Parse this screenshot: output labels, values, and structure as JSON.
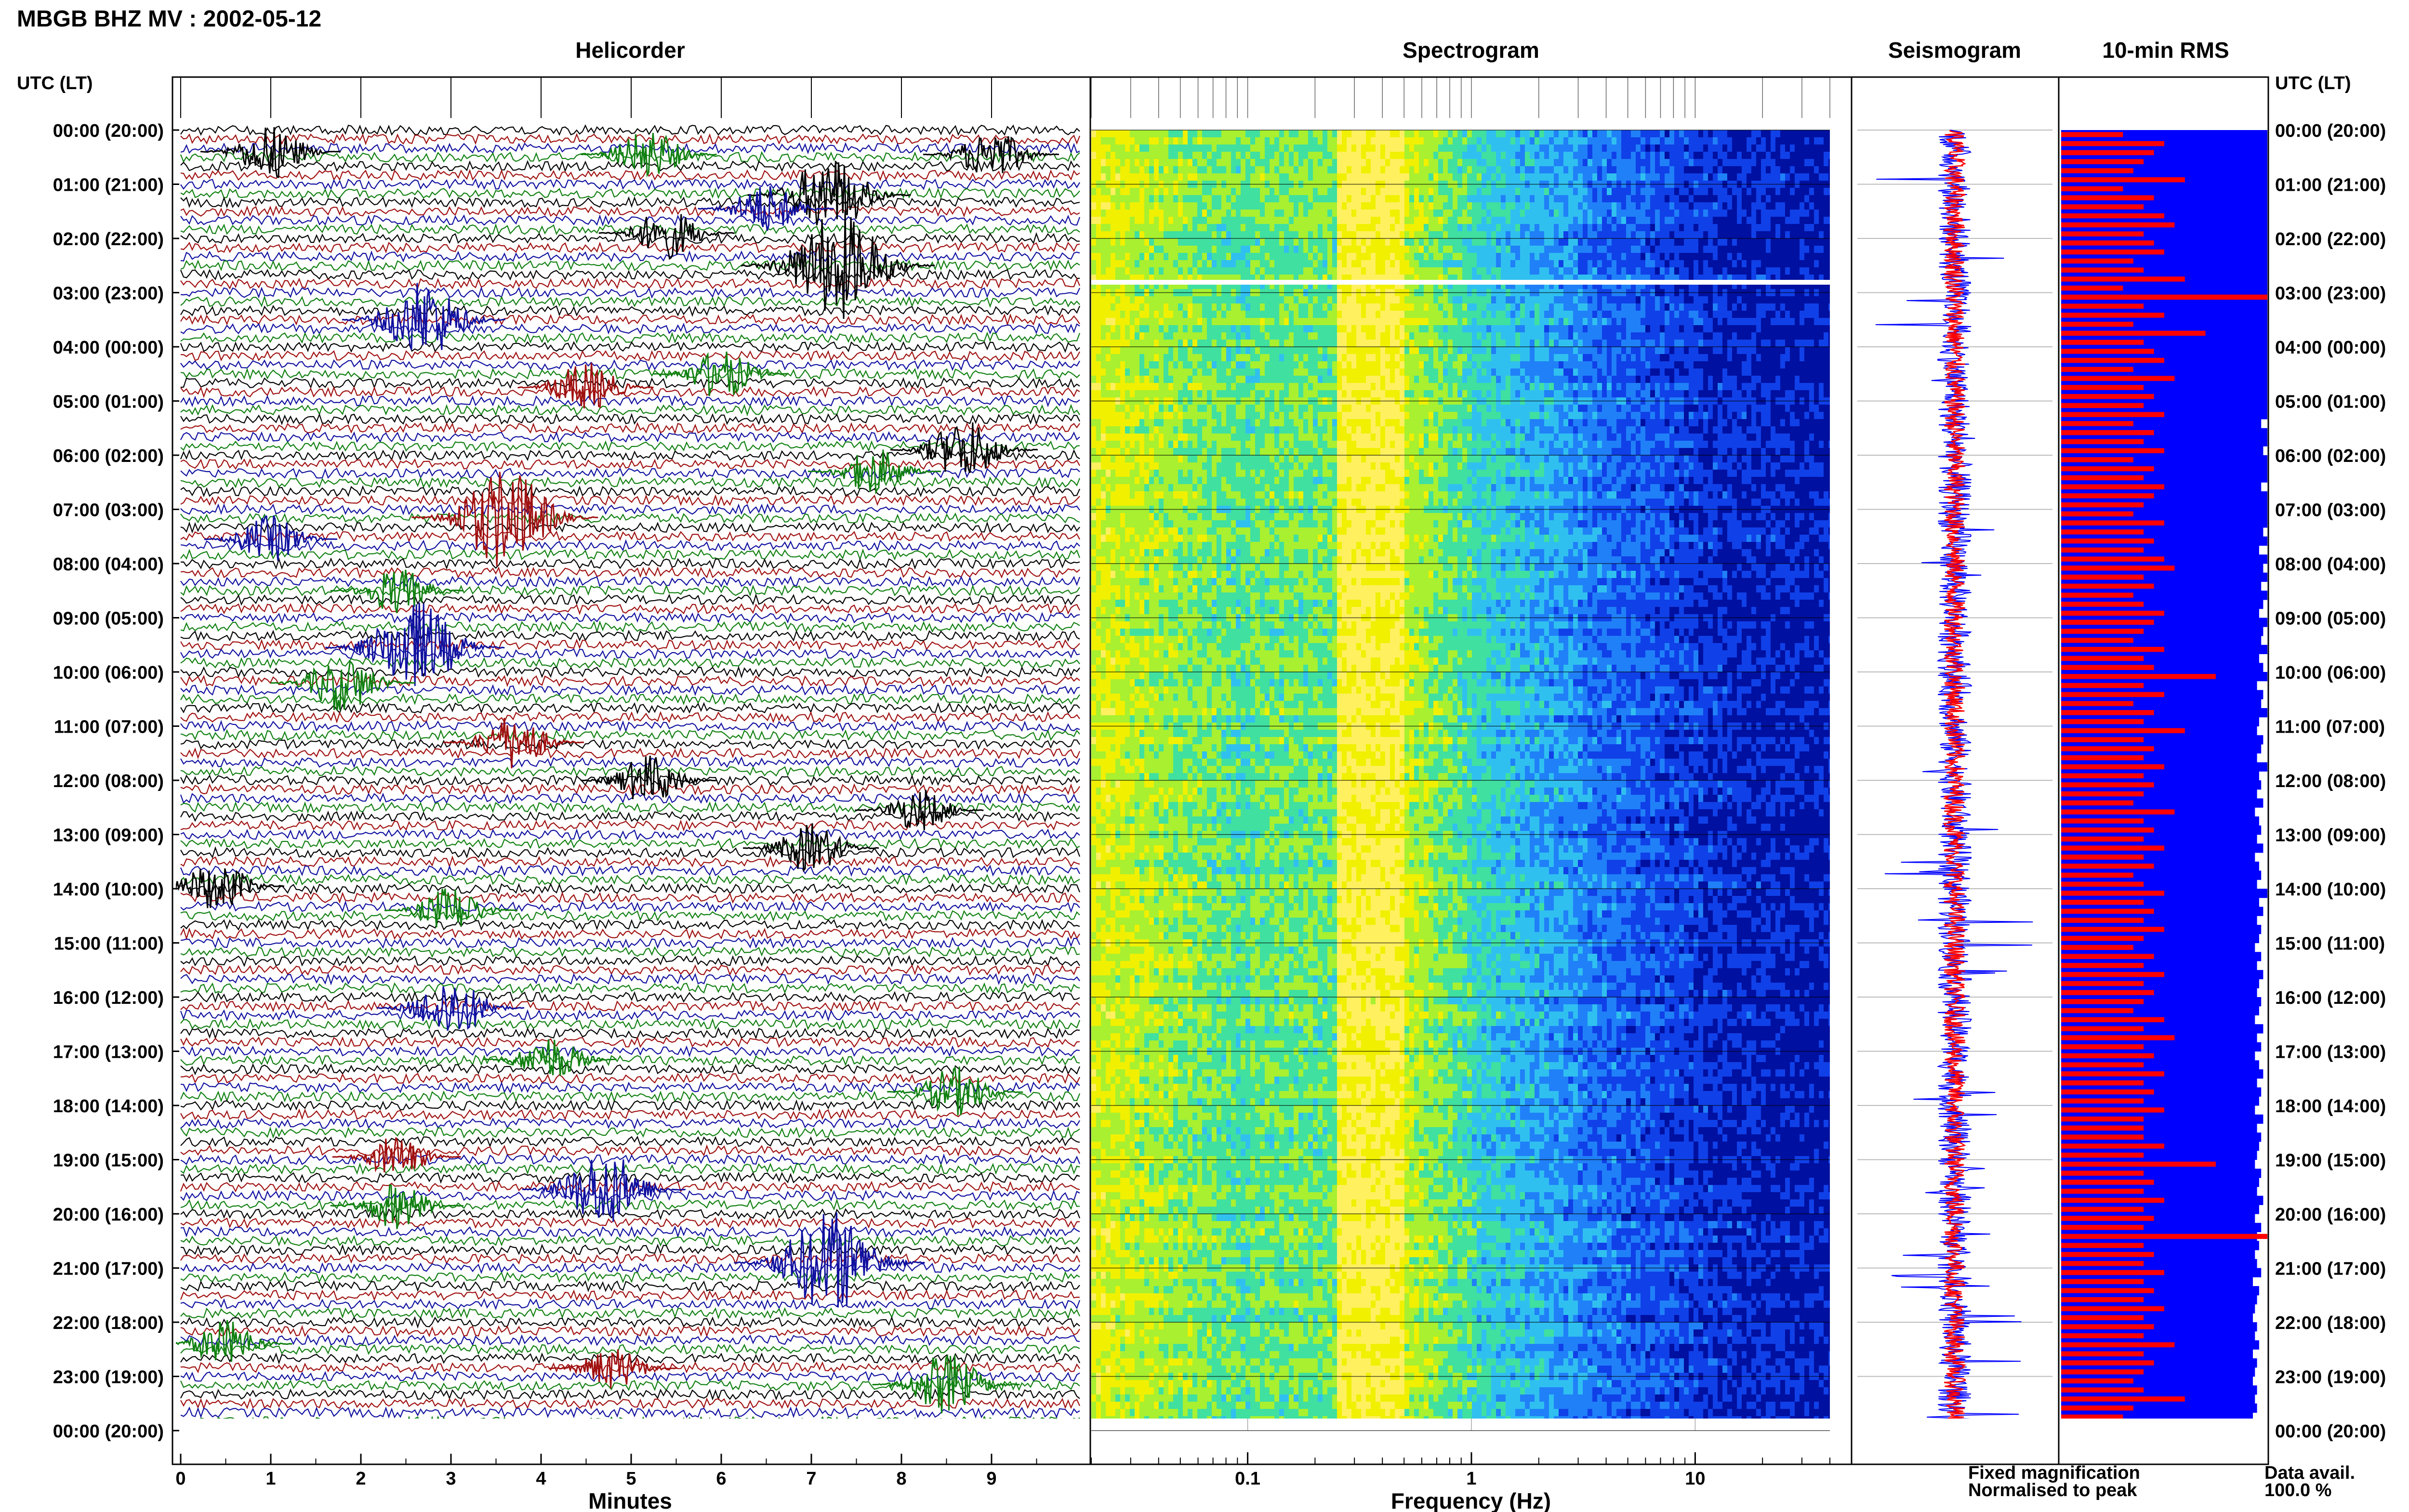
{
  "header": {
    "title": "MBGB BHZ MV : 2002-05-12",
    "utc_label_left": "UTC (LT)",
    "utc_label_right": "UTC (LT)"
  },
  "panels": {
    "helicorder_title": "Helicorder",
    "spectrogram_title": "Spectrogram",
    "seismogram_title": "Seismogram",
    "rms_title": "10-min RMS"
  },
  "axes": {
    "helicorder_xlabel": "Minutes",
    "spectrogram_xlabel": "Frequency (Hz)"
  },
  "legend": {
    "fixed": "Fixed magnification",
    "normalised": "Normalised to peak",
    "fixed_color": "#0000ff",
    "normalised_color": "#ff0000"
  },
  "data_availability": {
    "label": "Data avail.",
    "value": "100.0 %"
  },
  "time_labels": [
    "00:00 (20:00)",
    "01:00 (21:00)",
    "02:00 (22:00)",
    "03:00 (23:00)",
    "04:00 (00:00)",
    "05:00 (01:00)",
    "06:00 (02:00)",
    "07:00 (03:00)",
    "08:00 (04:00)",
    "09:00 (05:00)",
    "10:00 (06:00)",
    "11:00 (07:00)",
    "12:00 (08:00)",
    "13:00 (09:00)",
    "14:00 (10:00)",
    "15:00 (11:00)",
    "16:00 (12:00)",
    "17:00 (13:00)",
    "18:00 (14:00)",
    "19:00 (15:00)",
    "20:00 (16:00)",
    "21:00 (17:00)",
    "22:00 (18:00)",
    "23:00 (19:00)",
    "00:00 (20:00)"
  ],
  "chart_data": [
    {
      "type": "line",
      "name": "helicorder",
      "xlabel": "Minutes",
      "xlim": [
        0,
        10
      ],
      "xticks": [
        "0",
        "1",
        "2",
        "3",
        "4",
        "5",
        "6",
        "7",
        "8",
        "9"
      ],
      "trace_colors": [
        "#000000",
        "#a01010",
        "#1010a0",
        "#108010"
      ],
      "events": [
        {
          "hour": 0.4,
          "minute": 1.0,
          "color": "#000000",
          "amp": 1.4
        },
        {
          "hour": 0.45,
          "minute": 5.2,
          "color": "#108010",
          "amp": 1.3
        },
        {
          "hour": 0.45,
          "minute": 9.0,
          "color": "#000000",
          "amp": 1.3
        },
        {
          "hour": 1.2,
          "minute": 7.2,
          "color": "#000000",
          "amp": 2.0
        },
        {
          "hour": 1.45,
          "minute": 6.5,
          "color": "#1010a0",
          "amp": 1.3
        },
        {
          "hour": 1.9,
          "minute": 5.4,
          "color": "#000000",
          "amp": 1.3
        },
        {
          "hour": 2.5,
          "minute": 7.3,
          "color": "#000000",
          "amp": 2.8
        },
        {
          "hour": 3.5,
          "minute": 2.7,
          "color": "#1010a0",
          "amp": 2.0
        },
        {
          "hour": 4.5,
          "minute": 6.0,
          "color": "#108010",
          "amp": 1.3
        },
        {
          "hour": 4.75,
          "minute": 4.5,
          "color": "#a01010",
          "amp": 1.3
        },
        {
          "hour": 5.9,
          "minute": 8.7,
          "color": "#000000",
          "amp": 1.6
        },
        {
          "hour": 6.3,
          "minute": 7.7,
          "color": "#108010",
          "amp": 1.2
        },
        {
          "hour": 7.15,
          "minute": 3.6,
          "color": "#a01010",
          "amp": 2.6
        },
        {
          "hour": 7.55,
          "minute": 1.0,
          "color": "#1010a0",
          "amp": 1.2
        },
        {
          "hour": 8.5,
          "minute": 2.4,
          "color": "#108010",
          "amp": 1.2
        },
        {
          "hour": 9.55,
          "minute": 2.6,
          "color": "#1010a0",
          "amp": 2.4
        },
        {
          "hour": 10.2,
          "minute": 1.8,
          "color": "#108010",
          "amp": 1.5
        },
        {
          "hour": 11.3,
          "minute": 3.7,
          "color": "#a01010",
          "amp": 1.4
        },
        {
          "hour": 12.0,
          "minute": 5.2,
          "color": "#000000",
          "amp": 1.3
        },
        {
          "hour": 12.55,
          "minute": 8.2,
          "color": "#000000",
          "amp": 1.1
        },
        {
          "hour": 13.25,
          "minute": 7.0,
          "color": "#000000",
          "amp": 1.3
        },
        {
          "hour": 13.95,
          "minute": 0.4,
          "color": "#000000",
          "amp": 1.3
        },
        {
          "hour": 14.4,
          "minute": 3.0,
          "color": "#108010",
          "amp": 1.2
        },
        {
          "hour": 16.2,
          "minute": 3.0,
          "color": "#1010a0",
          "amp": 1.6
        },
        {
          "hour": 17.15,
          "minute": 4.1,
          "color": "#108010",
          "amp": 1.2
        },
        {
          "hour": 17.75,
          "minute": 8.6,
          "color": "#108010",
          "amp": 1.3
        },
        {
          "hour": 18.95,
          "minute": 2.4,
          "color": "#a01010",
          "amp": 1.1
        },
        {
          "hour": 19.55,
          "minute": 4.7,
          "color": "#1010a0",
          "amp": 2.0
        },
        {
          "hour": 19.85,
          "minute": 2.4,
          "color": "#108010",
          "amp": 1.2
        },
        {
          "hour": 20.9,
          "minute": 7.2,
          "color": "#1010a0",
          "amp": 2.7
        },
        {
          "hour": 22.4,
          "minute": 0.5,
          "color": "#108010",
          "amp": 1.2
        },
        {
          "hour": 22.85,
          "minute": 4.8,
          "color": "#a01010",
          "amp": 1.1
        },
        {
          "hour": 23.15,
          "minute": 8.5,
          "color": "#108010",
          "amp": 1.6
        }
      ]
    },
    {
      "type": "heatmap",
      "name": "spectrogram",
      "xlabel": "Frequency (Hz)",
      "xscale": "log",
      "xlim": [
        0.02,
        50
      ],
      "xticks": [
        0.1,
        1,
        10
      ],
      "xtick_labels": [
        "0.1",
        "1",
        "10"
      ],
      "fmax_data": 40,
      "peak_band_hz": [
        0.25,
        0.5
      ],
      "colormap": [
        "#fff060",
        "#f0f000",
        "#a8f030",
        "#40e0a0",
        "#30c0f0",
        "#2080f8",
        "#1040e8",
        "#0010a0"
      ],
      "gap_hour": 2.8
    },
    {
      "type": "line",
      "name": "seismogram",
      "series": [
        "Fixed magnification",
        "Normalised to peak"
      ]
    },
    {
      "type": "bar",
      "name": "rms_10min",
      "orientation": "horizontal",
      "normalised_rms": [
        0.3,
        0.5,
        0.45,
        0.4,
        0.35,
        0.6,
        0.3,
        0.45,
        0.4,
        0.5,
        0.55,
        0.4,
        0.45,
        0.5,
        0.35,
        0.4,
        0.6,
        0.3,
        1.0,
        0.4,
        0.5,
        0.35,
        0.7,
        0.4,
        0.45,
        0.5,
        0.35,
        0.55,
        0.4,
        0.45,
        0.4,
        0.5,
        0.35,
        0.45,
        0.4,
        0.5,
        0.35,
        0.45,
        0.4,
        0.5,
        0.45,
        0.4,
        0.35,
        0.5,
        0.4,
        0.45,
        0.4,
        0.5,
        0.55,
        0.4,
        0.45,
        0.35,
        0.4,
        0.5,
        0.45,
        0.4,
        0.35,
        0.5,
        0.4,
        0.45,
        0.75,
        0.4,
        0.5,
        0.35,
        0.45,
        0.4,
        0.6,
        0.4,
        0.45,
        0.4,
        0.5,
        0.4,
        0.45,
        0.4,
        0.35,
        0.55,
        0.4,
        0.45,
        0.4,
        0.5,
        0.4,
        0.45,
        0.35,
        0.4,
        0.5,
        0.4,
        0.45,
        0.4,
        0.5,
        0.4,
        0.35,
        0.45,
        0.4,
        0.5,
        0.4,
        0.45,
        0.4,
        0.35,
        0.5,
        0.4,
        0.55,
        0.4,
        0.45,
        0.4,
        0.5,
        0.4,
        0.45,
        0.4,
        0.5,
        0.4,
        0.4,
        0.4,
        0.5,
        0.4,
        0.75,
        0.4,
        0.45,
        0.4,
        0.5,
        0.4,
        0.45,
        0.4,
        1.0,
        0.4,
        0.45,
        0.4,
        0.5,
        0.4,
        0.45,
        0.4,
        0.5,
        0.4,
        0.45,
        0.4,
        0.55,
        0.4,
        0.45,
        0.4,
        0.35,
        0.4,
        0.6,
        0.35,
        0.3,
        0.3
      ],
      "fixed_rms": [
        1.0,
        1.0,
        1.0,
        1.0,
        1.0,
        1.0,
        1.0,
        1.0,
        1.0,
        1.0,
        1.0,
        1.0,
        1.0,
        1.0,
        1.0,
        1.0,
        1.0,
        1.0,
        1.0,
        1.0,
        1.0,
        1.0,
        1.0,
        1.0,
        1.0,
        1.0,
        1.0,
        1.0,
        1.0,
        1.0,
        1.0,
        1.0,
        0.97,
        1.0,
        1.0,
        0.98,
        1.0,
        1.0,
        1.0,
        0.97,
        1.0,
        1.0,
        1.0,
        1.0,
        0.98,
        1.0,
        0.96,
        1.0,
        0.98,
        1.0,
        0.97,
        1.0,
        0.98,
        0.96,
        1.0,
        0.98,
        0.97,
        1.0,
        0.96,
        0.98,
        1.0,
        0.95,
        0.98,
        0.97,
        1.0,
        0.96,
        0.95,
        0.98,
        0.97,
        0.95,
        1.0,
        0.96,
        0.97,
        0.95,
        0.98,
        0.94,
        0.96,
        0.97,
        0.95,
        0.98,
        0.94,
        0.96,
        0.97,
        0.95,
        1.0,
        0.96,
        0.98,
        0.95,
        0.97,
        0.96,
        0.94,
        0.97,
        0.95,
        0.98,
        0.96,
        0.95,
        0.97,
        0.96,
        0.94,
        0.98,
        0.95,
        0.97,
        0.94,
        0.96,
        0.98,
        0.95,
        0.97,
        0.96,
        0.94,
        0.98,
        0.95,
        0.97,
        0.96,
        0.95,
        0.94,
        0.97,
        0.96,
        0.95,
        0.98,
        0.96,
        0.94,
        0.97,
        0.95,
        0.96,
        0.94,
        0.95,
        0.97,
        0.93,
        0.96,
        0.95,
        0.94,
        0.93,
        0.95,
        0.94,
        0.96,
        0.93,
        0.95,
        0.94,
        0.93,
        0.95,
        0.94,
        0.95,
        0.93,
        0.94
      ]
    }
  ]
}
